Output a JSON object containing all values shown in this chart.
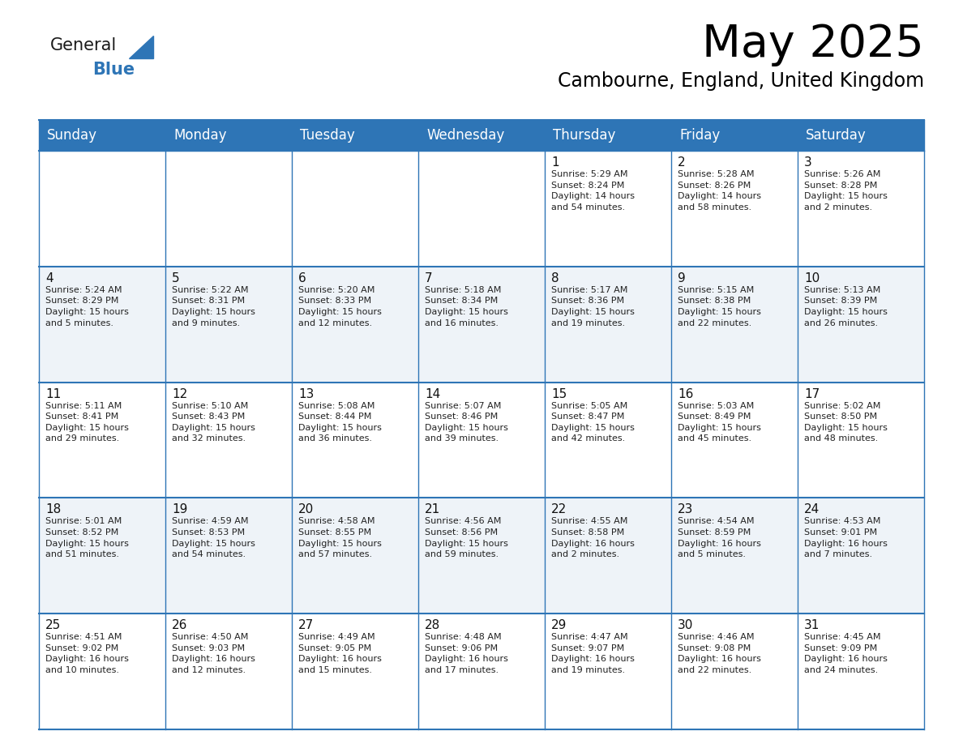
{
  "title": "May 2025",
  "subtitle": "Cambourne, England, United Kingdom",
  "header_bg_color": "#2E75B6",
  "header_text_color": "#FFFFFF",
  "row_bg_colors": [
    "#FFFFFF",
    "#EEF3F8"
  ],
  "grid_line_color": "#2E75B6",
  "day_headers": [
    "Sunday",
    "Monday",
    "Tuesday",
    "Wednesday",
    "Thursday",
    "Friday",
    "Saturday"
  ],
  "title_fontsize": 40,
  "subtitle_fontsize": 17,
  "header_fontsize": 12,
  "cell_day_fontsize": 11,
  "cell_text_fontsize": 8,
  "logo_general_color": "#1a1a1a",
  "logo_blue_color": "#2E75B6",
  "logo_triangle_color": "#2E75B6",
  "weeks": [
    [
      {
        "day": "",
        "info": ""
      },
      {
        "day": "",
        "info": ""
      },
      {
        "day": "",
        "info": ""
      },
      {
        "day": "",
        "info": ""
      },
      {
        "day": "1",
        "info": "Sunrise: 5:29 AM\nSunset: 8:24 PM\nDaylight: 14 hours\nand 54 minutes."
      },
      {
        "day": "2",
        "info": "Sunrise: 5:28 AM\nSunset: 8:26 PM\nDaylight: 14 hours\nand 58 minutes."
      },
      {
        "day": "3",
        "info": "Sunrise: 5:26 AM\nSunset: 8:28 PM\nDaylight: 15 hours\nand 2 minutes."
      }
    ],
    [
      {
        "day": "4",
        "info": "Sunrise: 5:24 AM\nSunset: 8:29 PM\nDaylight: 15 hours\nand 5 minutes."
      },
      {
        "day": "5",
        "info": "Sunrise: 5:22 AM\nSunset: 8:31 PM\nDaylight: 15 hours\nand 9 minutes."
      },
      {
        "day": "6",
        "info": "Sunrise: 5:20 AM\nSunset: 8:33 PM\nDaylight: 15 hours\nand 12 minutes."
      },
      {
        "day": "7",
        "info": "Sunrise: 5:18 AM\nSunset: 8:34 PM\nDaylight: 15 hours\nand 16 minutes."
      },
      {
        "day": "8",
        "info": "Sunrise: 5:17 AM\nSunset: 8:36 PM\nDaylight: 15 hours\nand 19 minutes."
      },
      {
        "day": "9",
        "info": "Sunrise: 5:15 AM\nSunset: 8:38 PM\nDaylight: 15 hours\nand 22 minutes."
      },
      {
        "day": "10",
        "info": "Sunrise: 5:13 AM\nSunset: 8:39 PM\nDaylight: 15 hours\nand 26 minutes."
      }
    ],
    [
      {
        "day": "11",
        "info": "Sunrise: 5:11 AM\nSunset: 8:41 PM\nDaylight: 15 hours\nand 29 minutes."
      },
      {
        "day": "12",
        "info": "Sunrise: 5:10 AM\nSunset: 8:43 PM\nDaylight: 15 hours\nand 32 minutes."
      },
      {
        "day": "13",
        "info": "Sunrise: 5:08 AM\nSunset: 8:44 PM\nDaylight: 15 hours\nand 36 minutes."
      },
      {
        "day": "14",
        "info": "Sunrise: 5:07 AM\nSunset: 8:46 PM\nDaylight: 15 hours\nand 39 minutes."
      },
      {
        "day": "15",
        "info": "Sunrise: 5:05 AM\nSunset: 8:47 PM\nDaylight: 15 hours\nand 42 minutes."
      },
      {
        "day": "16",
        "info": "Sunrise: 5:03 AM\nSunset: 8:49 PM\nDaylight: 15 hours\nand 45 minutes."
      },
      {
        "day": "17",
        "info": "Sunrise: 5:02 AM\nSunset: 8:50 PM\nDaylight: 15 hours\nand 48 minutes."
      }
    ],
    [
      {
        "day": "18",
        "info": "Sunrise: 5:01 AM\nSunset: 8:52 PM\nDaylight: 15 hours\nand 51 minutes."
      },
      {
        "day": "19",
        "info": "Sunrise: 4:59 AM\nSunset: 8:53 PM\nDaylight: 15 hours\nand 54 minutes."
      },
      {
        "day": "20",
        "info": "Sunrise: 4:58 AM\nSunset: 8:55 PM\nDaylight: 15 hours\nand 57 minutes."
      },
      {
        "day": "21",
        "info": "Sunrise: 4:56 AM\nSunset: 8:56 PM\nDaylight: 15 hours\nand 59 minutes."
      },
      {
        "day": "22",
        "info": "Sunrise: 4:55 AM\nSunset: 8:58 PM\nDaylight: 16 hours\nand 2 minutes."
      },
      {
        "day": "23",
        "info": "Sunrise: 4:54 AM\nSunset: 8:59 PM\nDaylight: 16 hours\nand 5 minutes."
      },
      {
        "day": "24",
        "info": "Sunrise: 4:53 AM\nSunset: 9:01 PM\nDaylight: 16 hours\nand 7 minutes."
      }
    ],
    [
      {
        "day": "25",
        "info": "Sunrise: 4:51 AM\nSunset: 9:02 PM\nDaylight: 16 hours\nand 10 minutes."
      },
      {
        "day": "26",
        "info": "Sunrise: 4:50 AM\nSunset: 9:03 PM\nDaylight: 16 hours\nand 12 minutes."
      },
      {
        "day": "27",
        "info": "Sunrise: 4:49 AM\nSunset: 9:05 PM\nDaylight: 16 hours\nand 15 minutes."
      },
      {
        "day": "28",
        "info": "Sunrise: 4:48 AM\nSunset: 9:06 PM\nDaylight: 16 hours\nand 17 minutes."
      },
      {
        "day": "29",
        "info": "Sunrise: 4:47 AM\nSunset: 9:07 PM\nDaylight: 16 hours\nand 19 minutes."
      },
      {
        "day": "30",
        "info": "Sunrise: 4:46 AM\nSunset: 9:08 PM\nDaylight: 16 hours\nand 22 minutes."
      },
      {
        "day": "31",
        "info": "Sunrise: 4:45 AM\nSunset: 9:09 PM\nDaylight: 16 hours\nand 24 minutes."
      }
    ]
  ]
}
